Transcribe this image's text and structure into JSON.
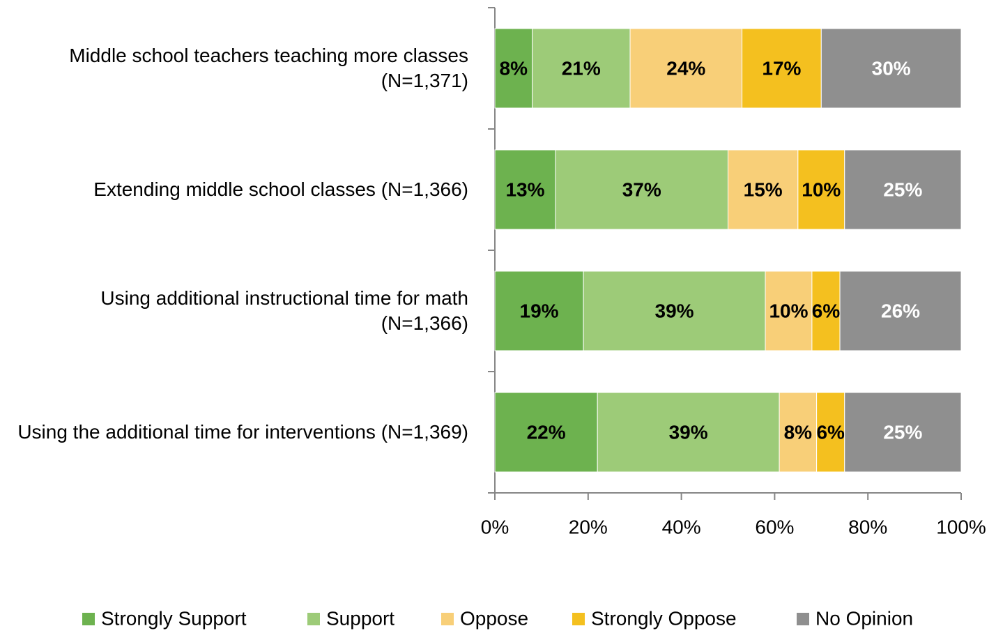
{
  "chart_data": {
    "type": "stacked_barh",
    "categories": [
      "Middle school teachers teaching more classes (N=1,371)",
      "Extending middle school classes (N=1,366)",
      "Using additional instructional time for math (N=1,366)",
      "Using the additional time for interventions (N=1,369)"
    ],
    "series": [
      {
        "name": "Strongly Support",
        "color": "#6db24f",
        "label_color": "#000000",
        "values": [
          8,
          13,
          19,
          22
        ],
        "value_labels": [
          "8%",
          "13%",
          "19%",
          "22%"
        ]
      },
      {
        "name": "Support",
        "color": "#9dcb78",
        "label_color": "#000000",
        "values": [
          21,
          37,
          39,
          39
        ],
        "value_labels": [
          "21%",
          "37%",
          "39%",
          "39%"
        ]
      },
      {
        "name": "Oppose",
        "color": "#f8cf78",
        "label_color": "#000000",
        "values": [
          24,
          15,
          10,
          8
        ],
        "value_labels": [
          "24%",
          "15%",
          "10%",
          "8%"
        ]
      },
      {
        "name": "Strongly Oppose",
        "color": "#f4c01f",
        "label_color": "#000000",
        "values": [
          17,
          10,
          6,
          6
        ],
        "value_labels": [
          "17%",
          "10%",
          "6%",
          "6%"
        ]
      },
      {
        "name": "No Opinion",
        "color": "#8f8f8f",
        "label_color": "#ffffff",
        "values": [
          30,
          25,
          26,
          25
        ],
        "value_labels": [
          "30%",
          "25%",
          "26%",
          "25%"
        ]
      }
    ],
    "xlim": [
      0,
      100
    ],
    "xticks": [
      {
        "value": 0,
        "label": "0%"
      },
      {
        "value": 20,
        "label": "20%"
      },
      {
        "value": 40,
        "label": "40%"
      },
      {
        "value": 60,
        "label": "60%"
      },
      {
        "value": 80,
        "label": "80%"
      },
      {
        "value": 100,
        "label": "100%"
      }
    ],
    "legend": "bottom"
  }
}
